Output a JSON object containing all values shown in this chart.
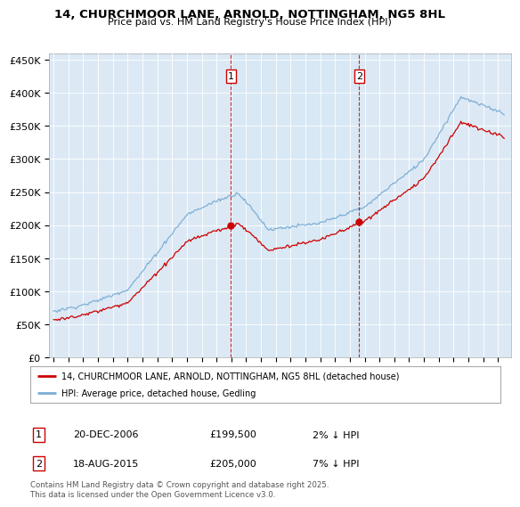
{
  "title": "14, CHURCHMOOR LANE, ARNOLD, NOTTINGHAM, NG5 8HL",
  "subtitle": "Price paid vs. HM Land Registry's House Price Index (HPI)",
  "legend_line1": "14, CHURCHMOOR LANE, ARNOLD, NOTTINGHAM, NG5 8HL (detached house)",
  "legend_line2": "HPI: Average price, detached house, Gedling",
  "annotation1_label": "1",
  "annotation1_date": "20-DEC-2006",
  "annotation1_price": "£199,500",
  "annotation1_hpi": "2% ↓ HPI",
  "annotation2_label": "2",
  "annotation2_date": "18-AUG-2015",
  "annotation2_price": "£205,000",
  "annotation2_hpi": "7% ↓ HPI",
  "footnote": "Contains HM Land Registry data © Crown copyright and database right 2025.\nThis data is licensed under the Open Government Licence v3.0.",
  "line_color_property": "#cc0000",
  "line_color_hpi": "#7aadd4",
  "shade_color": "#d8e8f4",
  "background_color": "#dce9f5",
  "vline1_x": 2006.97,
  "vline2_x": 2015.63,
  "sale1_y": 199500,
  "sale2_y": 205000,
  "ylim": [
    0,
    460000
  ],
  "xlim_start": 1994.7,
  "xlim_end": 2025.9
}
